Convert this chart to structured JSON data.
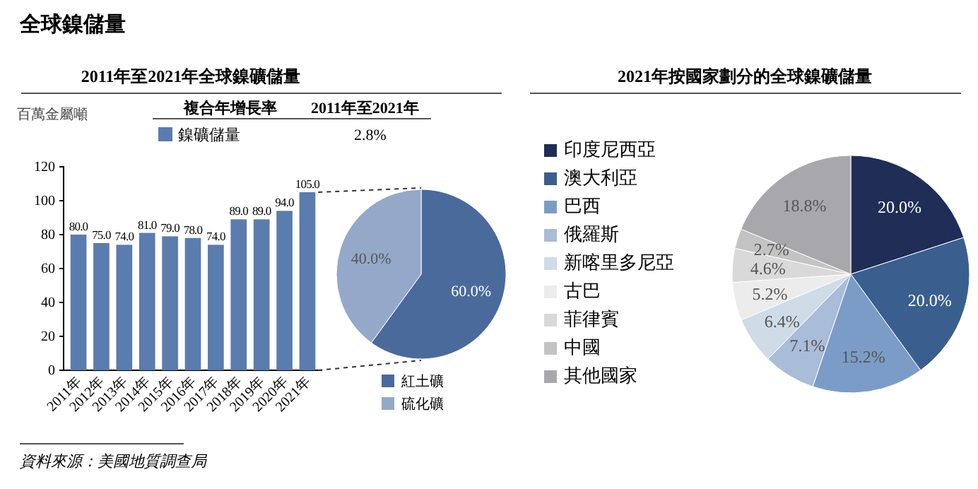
{
  "chart_data": [
    {
      "type": "bar",
      "title": "2011年至2021年全球鎳礦儲量",
      "ylabel": "百萬金屬噸",
      "categories": [
        "2011年",
        "2012年",
        "2013年",
        "2014年",
        "2015年",
        "2016年",
        "2017年",
        "2018年",
        "2019年",
        "2020年",
        "2021年"
      ],
      "series": [
        {
          "name": "鎳礦儲量",
          "color": "#5b7cae",
          "values": [
            80,
            75,
            74,
            81,
            79,
            78,
            74,
            89,
            89,
            94,
            105
          ],
          "value_labels": [
            "80.0",
            "75.0",
            "74.0",
            "81.0",
            "79.0",
            "78.0",
            "74.0",
            "89.0",
            "89.0",
            "94.0",
            "105.0"
          ]
        }
      ],
      "ylim": [
        0,
        120
      ],
      "yticks": [
        0,
        20,
        40,
        60,
        80,
        100,
        120
      ],
      "legend": "top",
      "annotations": [
        "全球鎳儲量",
        "複合年增長率",
        "2011年至2021年",
        "2.8%",
        "資料來源：美國地質調查局"
      ]
    },
    {
      "type": "pie",
      "categories": [
        "紅土礦",
        "硫化礦"
      ],
      "values": [
        60,
        40
      ],
      "colors": [
        "#4a6a9c",
        "#94a9c9"
      ],
      "value_labels": [
        "60.0%",
        "40.0%"
      ],
      "legend": "bottom"
    },
    {
      "type": "pie",
      "title": "2021年按國家劃分的全球鎳礦儲量",
      "categories": [
        "印度尼西亞",
        "澳大利亞",
        "巴西",
        "俄羅斯",
        "新喀里多尼亞",
        "古巴",
        "菲律賓",
        "中國",
        "其他國家"
      ],
      "values": [
        20,
        20,
        15.2,
        7.1,
        6.4,
        5.2,
        4.6,
        2.7,
        18.8
      ],
      "colors": [
        "#1f2d57",
        "#3a5f8f",
        "#7b9cc7",
        "#a9bcd8",
        "#d0dbe8",
        "#ececec",
        "#d9d9d9",
        "#c3c3c3",
        "#a8a8ac"
      ],
      "value_labels": [
        "20.0%",
        "20.0%",
        "15.2%",
        "7.1%",
        "6.4%",
        "5.2%",
        "4.6%",
        "2.7%",
        "18.8%"
      ],
      "legend": "left"
    }
  ]
}
